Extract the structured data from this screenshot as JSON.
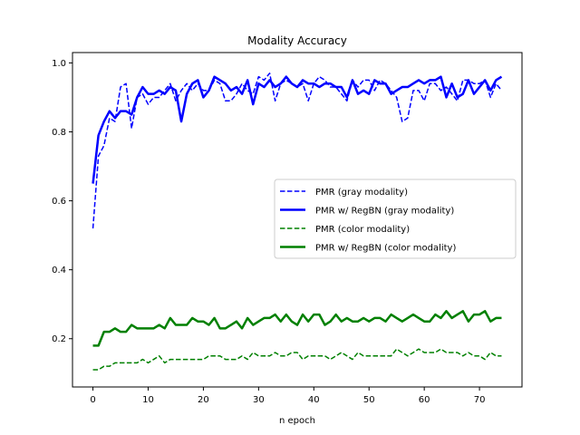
{
  "chart_data": {
    "type": "line",
    "title": "Modality Accuracy",
    "xlabel": "n epoch",
    "ylabel": "",
    "xlim": [
      -3.7,
      77.7
    ],
    "ylim": [
      0.06,
      1.03
    ],
    "xticks": [
      0,
      10,
      20,
      30,
      40,
      50,
      60,
      70
    ],
    "yticks": [
      0.2,
      0.4,
      0.6,
      0.8,
      1.0
    ],
    "ytick_labels": [
      "0.2",
      "0.4",
      "0.6",
      "0.8",
      "1.0"
    ],
    "legend_position": "center-right",
    "series": [
      {
        "name": "PMR (gray modality)",
        "color": "#0000ff",
        "style": "dashed",
        "values": [
          0.52,
          0.73,
          0.76,
          0.84,
          0.83,
          0.93,
          0.94,
          0.81,
          0.9,
          0.91,
          0.88,
          0.9,
          0.9,
          0.92,
          0.94,
          0.89,
          0.92,
          0.94,
          0.92,
          0.94,
          0.92,
          0.92,
          0.95,
          0.94,
          0.89,
          0.89,
          0.91,
          0.94,
          0.92,
          0.91,
          0.96,
          0.95,
          0.97,
          0.89,
          0.94,
          0.95,
          0.94,
          0.93,
          0.94,
          0.89,
          0.94,
          0.96,
          0.95,
          0.93,
          0.93,
          0.91,
          0.89,
          0.95,
          0.93,
          0.95,
          0.95,
          0.92,
          0.95,
          0.94,
          0.92,
          0.9,
          0.83,
          0.84,
          0.92,
          0.92,
          0.89,
          0.94,
          0.94,
          0.92,
          0.93,
          0.91,
          0.89,
          0.95,
          0.95,
          0.94,
          0.94,
          0.95,
          0.9,
          0.94,
          0.92
        ]
      },
      {
        "name": "PMR w/ RegBN (gray modality)",
        "color": "#0000ff",
        "style": "solid",
        "values": [
          0.65,
          0.79,
          0.83,
          0.86,
          0.84,
          0.86,
          0.86,
          0.85,
          0.9,
          0.93,
          0.91,
          0.91,
          0.92,
          0.91,
          0.93,
          0.92,
          0.83,
          0.91,
          0.94,
          0.95,
          0.9,
          0.92,
          0.96,
          0.95,
          0.94,
          0.92,
          0.93,
          0.91,
          0.95,
          0.88,
          0.94,
          0.93,
          0.95,
          0.93,
          0.94,
          0.96,
          0.94,
          0.93,
          0.95,
          0.94,
          0.94,
          0.93,
          0.94,
          0.94,
          0.93,
          0.93,
          0.9,
          0.95,
          0.91,
          0.92,
          0.91,
          0.95,
          0.94,
          0.94,
          0.91,
          0.92,
          0.93,
          0.93,
          0.94,
          0.95,
          0.94,
          0.95,
          0.95,
          0.96,
          0.9,
          0.94,
          0.9,
          0.91,
          0.95,
          0.91,
          0.93,
          0.95,
          0.92,
          0.95,
          0.96
        ]
      },
      {
        "name": "PMR (color modality)",
        "color": "#008000",
        "style": "dashed",
        "values": [
          0.11,
          0.11,
          0.12,
          0.12,
          0.13,
          0.13,
          0.13,
          0.13,
          0.13,
          0.14,
          0.13,
          0.14,
          0.15,
          0.13,
          0.14,
          0.14,
          0.14,
          0.14,
          0.14,
          0.14,
          0.14,
          0.15,
          0.15,
          0.15,
          0.14,
          0.14,
          0.14,
          0.15,
          0.14,
          0.16,
          0.15,
          0.15,
          0.15,
          0.16,
          0.15,
          0.15,
          0.16,
          0.16,
          0.14,
          0.15,
          0.15,
          0.15,
          0.15,
          0.14,
          0.15,
          0.16,
          0.15,
          0.14,
          0.16,
          0.15,
          0.15,
          0.15,
          0.15,
          0.15,
          0.15,
          0.17,
          0.16,
          0.15,
          0.16,
          0.17,
          0.16,
          0.16,
          0.16,
          0.17,
          0.16,
          0.16,
          0.16,
          0.15,
          0.16,
          0.15,
          0.15,
          0.14,
          0.16,
          0.15,
          0.15
        ]
      },
      {
        "name": "PMR w/ RegBN (color modality)",
        "color": "#008000",
        "style": "solid",
        "values": [
          0.18,
          0.18,
          0.22,
          0.22,
          0.23,
          0.22,
          0.22,
          0.24,
          0.23,
          0.23,
          0.23,
          0.23,
          0.24,
          0.23,
          0.26,
          0.24,
          0.24,
          0.24,
          0.26,
          0.25,
          0.25,
          0.24,
          0.26,
          0.23,
          0.23,
          0.24,
          0.25,
          0.23,
          0.26,
          0.24,
          0.25,
          0.26,
          0.26,
          0.27,
          0.25,
          0.27,
          0.25,
          0.24,
          0.27,
          0.25,
          0.27,
          0.27,
          0.24,
          0.25,
          0.27,
          0.25,
          0.26,
          0.25,
          0.25,
          0.26,
          0.25,
          0.26,
          0.26,
          0.25,
          0.27,
          0.26,
          0.25,
          0.26,
          0.27,
          0.26,
          0.25,
          0.25,
          0.27,
          0.26,
          0.28,
          0.26,
          0.27,
          0.28,
          0.25,
          0.27,
          0.27,
          0.28,
          0.25,
          0.26,
          0.26
        ]
      }
    ]
  }
}
